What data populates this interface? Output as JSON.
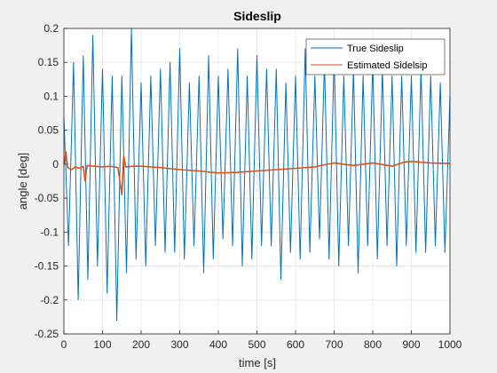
{
  "chart_data": {
    "type": "line",
    "title": "Sideslip",
    "xlabel": "time [s]",
    "ylabel": "angle [deg]",
    "xlim": [
      0,
      1000
    ],
    "ylim": [
      -0.25,
      0.2
    ],
    "x_ticks": [
      0,
      100,
      200,
      300,
      400,
      500,
      600,
      700,
      800,
      900,
      1000
    ],
    "y_ticks": [
      -0.25,
      -0.2,
      -0.15,
      -0.1,
      -0.05,
      0,
      0.05,
      0.1,
      0.15,
      0.2
    ],
    "x_tick_labels": [
      "0",
      "100",
      "200",
      "300",
      "400",
      "500",
      "600",
      "700",
      "800",
      "900",
      "1000"
    ],
    "y_tick_labels": [
      "-0.25",
      "-0.2",
      "-0.15",
      "-0.1",
      "-0.05",
      "0",
      "0.05",
      "0.1",
      "0.15",
      "0.2"
    ],
    "grid": true,
    "legend_position": "top-right",
    "series": [
      {
        "name": "True Sideslip",
        "color": "#0072BD",
        "x": [
          0,
          12,
          25,
          37,
          50,
          62,
          75,
          87,
          100,
          112,
          125,
          137,
          150,
          162,
          175,
          187,
          200,
          212,
          225,
          237,
          250,
          262,
          275,
          287,
          300,
          312,
          325,
          337,
          350,
          362,
          375,
          387,
          400,
          412,
          425,
          437,
          450,
          462,
          475,
          487,
          500,
          512,
          525,
          537,
          550,
          562,
          575,
          587,
          600,
          612,
          625,
          637,
          650,
          662,
          675,
          687,
          700,
          712,
          725,
          737,
          750,
          762,
          775,
          787,
          800,
          812,
          825,
          837,
          850,
          862,
          875,
          887,
          900,
          912,
          925,
          937,
          950,
          962,
          975,
          987,
          1000
        ],
        "y": [
          0.07,
          -0.12,
          0.15,
          -0.2,
          0.16,
          -0.17,
          0.19,
          -0.15,
          0.14,
          -0.19,
          0.13,
          -0.23,
          0.13,
          -0.16,
          0.2,
          -0.14,
          0.12,
          -0.15,
          0.13,
          -0.12,
          0.14,
          -0.13,
          0.15,
          -0.13,
          0.17,
          -0.14,
          0.12,
          -0.12,
          0.13,
          -0.16,
          0.16,
          -0.14,
          0.13,
          -0.11,
          0.14,
          -0.12,
          0.17,
          -0.15,
          0.13,
          -0.14,
          0.16,
          -0.12,
          0.14,
          -0.12,
          0.14,
          -0.17,
          0.12,
          -0.13,
          0.13,
          -0.14,
          0.17,
          -0.13,
          0.13,
          -0.11,
          0.15,
          -0.14,
          0.16,
          -0.15,
          0.13,
          -0.12,
          0.14,
          -0.16,
          0.13,
          -0.12,
          0.15,
          -0.14,
          0.14,
          -0.12,
          0.13,
          -0.15,
          0.13,
          -0.12,
          0.13,
          -0.13,
          0.14,
          -0.13,
          0.13,
          -0.12,
          0.12,
          -0.13,
          0.1
        ]
      },
      {
        "name": "Estimated Sidelsip",
        "color": "#D95319",
        "x": [
          0,
          5,
          10,
          20,
          30,
          40,
          50,
          55,
          60,
          80,
          100,
          120,
          140,
          150,
          155,
          160,
          180,
          200,
          250,
          300,
          350,
          400,
          450,
          500,
          550,
          600,
          650,
          700,
          750,
          800,
          850,
          880,
          900,
          950,
          1000
        ],
        "y": [
          0,
          0.018,
          -0.005,
          -0.008,
          -0.004,
          -0.006,
          -0.003,
          -0.025,
          -0.002,
          -0.003,
          -0.004,
          -0.003,
          -0.005,
          -0.045,
          0.012,
          -0.004,
          -0.003,
          -0.003,
          -0.005,
          -0.008,
          -0.01,
          -0.013,
          -0.012,
          -0.01,
          -0.008,
          -0.006,
          -0.004,
          0.002,
          -0.002,
          0.002,
          -0.003,
          0.003,
          0.004,
          0.002,
          0.001
        ]
      }
    ]
  }
}
